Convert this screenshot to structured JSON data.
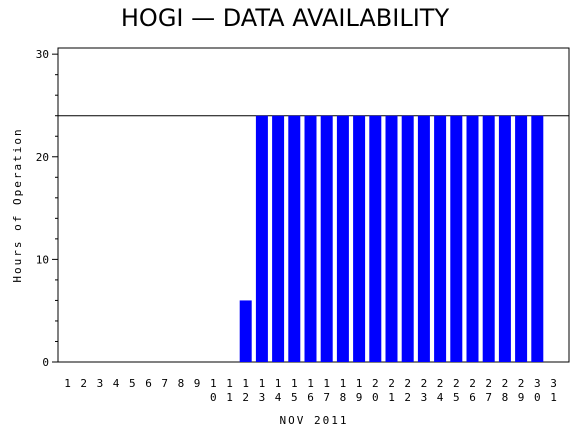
{
  "chart_data": {
    "type": "bar",
    "title": "HOGI — DATA AVAILABILITY",
    "xlabel": "NOV 2011",
    "ylabel": "Hours of Operation",
    "ylim": [
      0,
      30
    ],
    "yticks": [
      "0",
      "10",
      "20",
      "30"
    ],
    "reference_line": 24,
    "bar_color": "#0000ff",
    "categories": [
      "1",
      "2",
      "3",
      "4",
      "5",
      "6",
      "7",
      "8",
      "9",
      "10",
      "11",
      "12",
      "13",
      "14",
      "15",
      "16",
      "17",
      "18",
      "19",
      "20",
      "21",
      "22",
      "23",
      "24",
      "25",
      "26",
      "27",
      "28",
      "29",
      "30",
      "31"
    ],
    "values": [
      0,
      0,
      0,
      0,
      0,
      0,
      0,
      0,
      0,
      0,
      0,
      6,
      24,
      24,
      24,
      24,
      24,
      24,
      24,
      24,
      24,
      24,
      24,
      24,
      24,
      24,
      24,
      24,
      24,
      24,
      0
    ]
  }
}
